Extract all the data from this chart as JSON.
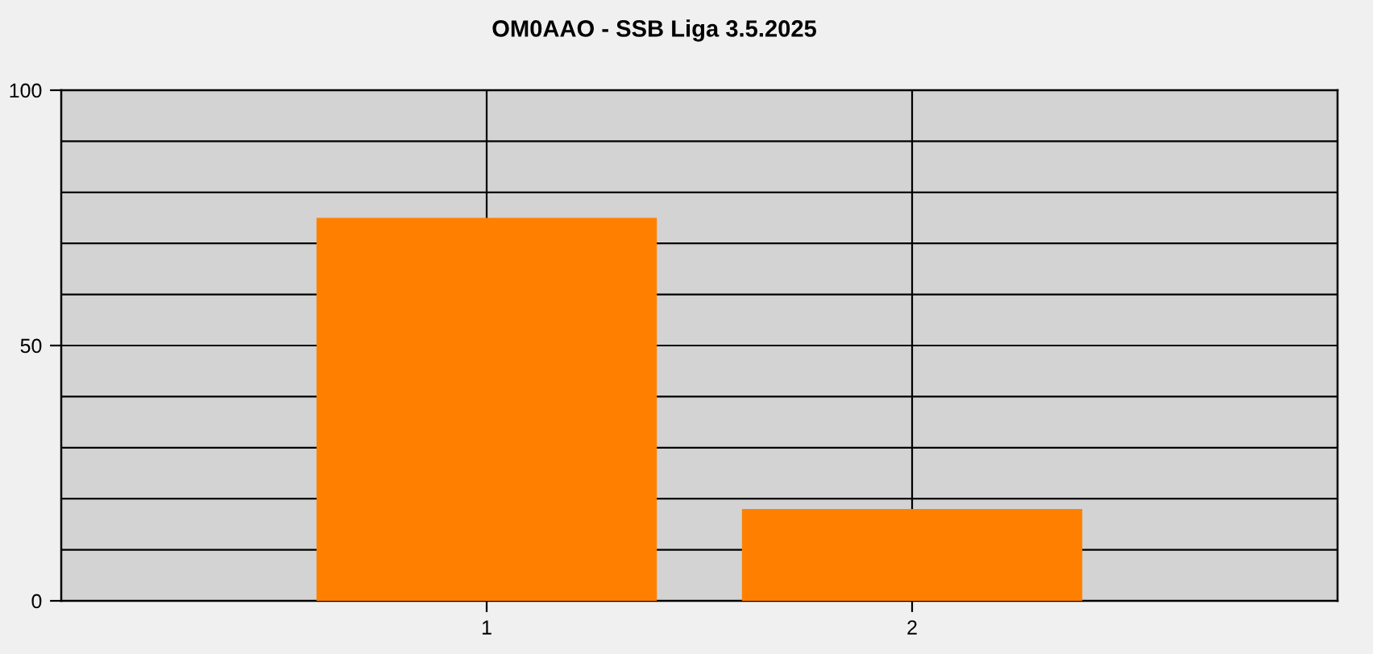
{
  "chart_data": {
    "type": "bar",
    "title": "OM0AAO - SSB Liga 3.5.2025",
    "x": [
      1,
      2
    ],
    "values": [
      75,
      18
    ],
    "color": "#ff8000",
    "xlim": [
      0,
      3
    ],
    "xticks": [
      1,
      2
    ],
    "ylim": [
      0,
      100
    ],
    "yticks": [
      0,
      {
        "value": 10,
        "label": null
      },
      {
        "value": 20,
        "label": null
      },
      {
        "value": 30,
        "label": null
      },
      {
        "value": 40,
        "label": null
      },
      50,
      {
        "value": 60,
        "label": null
      },
      {
        "value": 70,
        "label": null
      },
      {
        "value": 80,
        "label": null
      },
      {
        "value": 90,
        "label": null
      },
      100
    ],
    "grid": true
  }
}
